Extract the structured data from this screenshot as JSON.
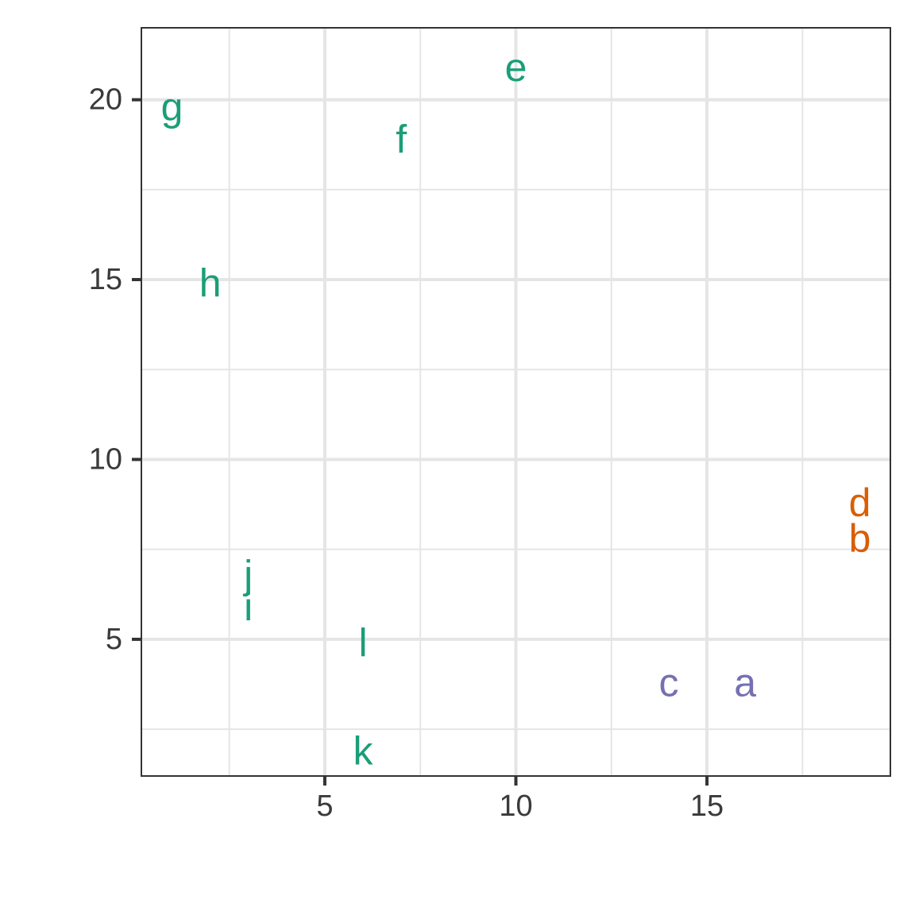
{
  "chart_data": {
    "type": "scatter",
    "title": "",
    "xlabel": "",
    "ylabel": "",
    "xlim": [
      0.2,
      19.8
    ],
    "ylim": [
      1.2,
      22
    ],
    "x_ticks": [
      5,
      10,
      15
    ],
    "y_ticks": [
      5,
      10,
      15,
      20
    ],
    "x_tick_labels": [
      "5",
      "10",
      "15"
    ],
    "y_tick_labels": [
      "5",
      "10",
      "15",
      "20"
    ],
    "x_minor_grid": [
      2.5,
      7.5,
      12.5,
      17.5
    ],
    "y_minor_grid": [
      2.5,
      7.5,
      12.5,
      17.5
    ],
    "grid": true,
    "legend": "none",
    "colors": {
      "green": "#1b9e77",
      "purple": "#7570b3",
      "orange": "#d95f02",
      "grid": "#e5e5e5",
      "axis": "#333333",
      "tick_text": "#3a3a3a"
    },
    "points": [
      {
        "label": "a",
        "x": 16,
        "y": 3.8,
        "color": "#7570b3"
      },
      {
        "label": "b",
        "x": 19,
        "y": 7.8,
        "color": "#d95f02"
      },
      {
        "label": "c",
        "x": 14,
        "y": 3.8,
        "color": "#7570b3"
      },
      {
        "label": "d",
        "x": 19,
        "y": 8.8,
        "color": "#d95f02"
      },
      {
        "label": "e",
        "x": 10,
        "y": 20.9,
        "color": "#1b9e77"
      },
      {
        "label": "f",
        "x": 7,
        "y": 18.9,
        "color": "#1b9e77"
      },
      {
        "label": "g",
        "x": 1,
        "y": 19.8,
        "color": "#1b9e77"
      },
      {
        "label": "h",
        "x": 2,
        "y": 14.9,
        "color": "#1b9e77"
      },
      {
        "label": "i",
        "x": 3,
        "y": 5.9,
        "color": "#1b9e77"
      },
      {
        "label": "j",
        "x": 3,
        "y": 6.8,
        "color": "#1b9e77"
      },
      {
        "label": "k",
        "x": 6,
        "y": 1.9,
        "color": "#1b9e77"
      },
      {
        "label": "l",
        "x": 6,
        "y": 4.9,
        "color": "#1b9e77"
      }
    ]
  }
}
